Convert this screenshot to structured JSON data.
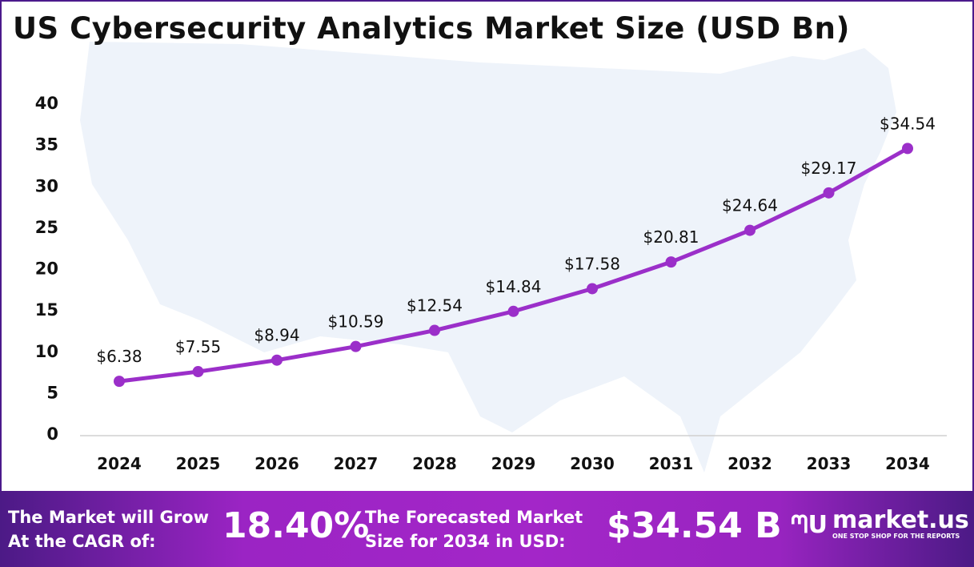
{
  "chart_data": {
    "type": "line",
    "title": "US Cybersecurity Analytics Market Size (USD Bn)",
    "categories": [
      "2024",
      "2025",
      "2026",
      "2027",
      "2028",
      "2029",
      "2030",
      "2031",
      "2032",
      "2033",
      "2034"
    ],
    "values": [
      6.38,
      7.55,
      8.94,
      10.59,
      12.54,
      14.84,
      17.58,
      20.81,
      24.64,
      29.17,
      34.54
    ],
    "data_labels": [
      "$6.38",
      "$7.55",
      "$8.94",
      "$10.59",
      "$12.54",
      "$14.84",
      "$17.58",
      "$20.81",
      "$24.64",
      "$29.17",
      "$34.54"
    ],
    "yticks": [
      0,
      5,
      10,
      15,
      20,
      25,
      30,
      35,
      40
    ],
    "ylim": [
      0,
      40
    ],
    "grid": false,
    "line_color": "#9b2fc9",
    "xlabel": "",
    "ylabel": ""
  },
  "footer": {
    "cagr_label_1": "The Market will Grow",
    "cagr_label_2": "At the CAGR of:",
    "cagr_value": "18.40%",
    "forecast_label_1": "The Forecasted Market",
    "forecast_label_2": "Size for 2034 in USD:",
    "forecast_value": "$34.54 B",
    "brand_name": "market.us",
    "brand_tagline": "ONE STOP SHOP FOR THE REPORTS"
  }
}
